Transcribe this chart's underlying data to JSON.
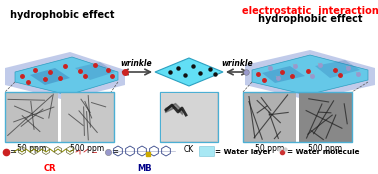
{
  "title_left": "hydrophobic effect",
  "title_right_red": "electrostatic  interaction",
  "title_right_black": "hydrophobic effect",
  "label_wrinkle_left": "wrinkle",
  "label_wrinkle_right": "wrinkle",
  "label_ck": "CK",
  "label_50ppm_left": "50 ppm",
  "label_500ppm_left": "500 ppm",
  "label_50ppm_right": "50 ppm",
  "label_500ppm_right": "500 ppm",
  "legend_cr": "CR",
  "legend_mb": "MB",
  "legend_water_layer": "= Water layer",
  "legend_water_molecule": "= Water molecule",
  "bg_color": "#ffffff",
  "box_border_color": "#4bafd4",
  "arrow_color": "#555555",
  "cr_dot_color": "#cc2222",
  "mb_dot_color": "#9999cc",
  "water_layer_color": "#a8e8f4",
  "slab_color": "#5bc8e8",
  "slab_edge": "#2299bb",
  "haze_color": "#4466cc",
  "title_fontsize": 7,
  "label_fontsize": 5.5,
  "small_fontsize": 5.2
}
